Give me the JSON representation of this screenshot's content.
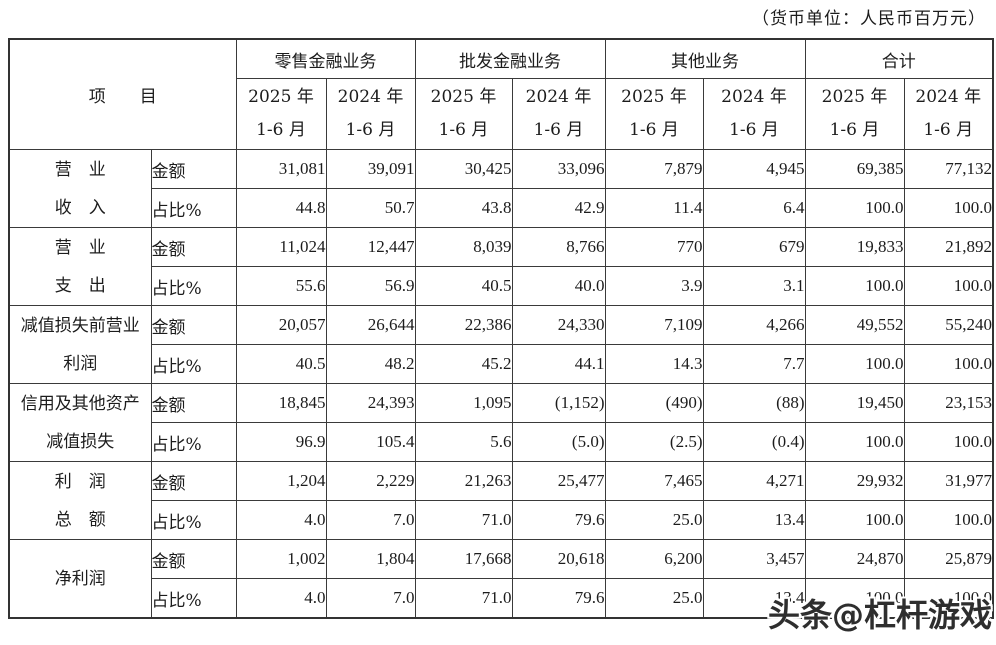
{
  "unit_note": "（货币单位：人民币百万元）",
  "watermark": "头条@杠杆游戏",
  "table": {
    "item_header": "项　　目",
    "groups": [
      {
        "label": "零售金融业务"
      },
      {
        "label": "批发金融业务"
      },
      {
        "label": "其他业务"
      },
      {
        "label": "合计"
      }
    ],
    "period_headers": [
      "2025 年\n1-6 月",
      "2024 年\n1-6 月",
      "2025 年\n1-6 月",
      "2024 年\n1-6 月",
      "2025 年\n1-6 月",
      "2024 年\n1-6 月",
      "2025 年\n1-6 月",
      "2024 年\n1-6 月"
    ],
    "row_labels": {
      "amount": "金额",
      "share": "占比%"
    },
    "rows": [
      {
        "item": "营　业\n收　入",
        "amount": [
          "31,081",
          "39,091",
          "30,425",
          "33,096",
          "7,879",
          "4,945",
          "69,385",
          "77,132"
        ],
        "share": [
          "44.8",
          "50.7",
          "43.8",
          "42.9",
          "11.4",
          "6.4",
          "100.0",
          "100.0"
        ]
      },
      {
        "item": "营　业\n支　出",
        "amount": [
          "11,024",
          "12,447",
          "8,039",
          "8,766",
          "770",
          "679",
          "19,833",
          "21,892"
        ],
        "share": [
          "55.6",
          "56.9",
          "40.5",
          "40.0",
          "3.9",
          "3.1",
          "100.0",
          "100.0"
        ]
      },
      {
        "item": "减值损失前营业\n利润",
        "amount": [
          "20,057",
          "26,644",
          "22,386",
          "24,330",
          "7,109",
          "4,266",
          "49,552",
          "55,240"
        ],
        "share": [
          "40.5",
          "48.2",
          "45.2",
          "44.1",
          "14.3",
          "7.7",
          "100.0",
          "100.0"
        ]
      },
      {
        "item": "信用及其他资产\n减值损失",
        "amount": [
          "18,845",
          "24,393",
          "1,095",
          "(1,152)",
          "(490)",
          "(88)",
          "19,450",
          "23,153"
        ],
        "share": [
          "96.9",
          "105.4",
          "5.6",
          "(5.0)",
          "(2.5)",
          "(0.4)",
          "100.0",
          "100.0"
        ]
      },
      {
        "item": "利　润\n总　额",
        "amount": [
          "1,204",
          "2,229",
          "21,263",
          "25,477",
          "7,465",
          "4,271",
          "29,932",
          "31,977"
        ],
        "share": [
          "4.0",
          "7.0",
          "71.0",
          "79.6",
          "25.0",
          "13.4",
          "100.0",
          "100.0"
        ]
      },
      {
        "item": "净利润",
        "amount": [
          "1,002",
          "1,804",
          "17,668",
          "20,618",
          "6,200",
          "3,457",
          "24,870",
          "25,879"
        ],
        "share": [
          "4.0",
          "7.0",
          "71.0",
          "79.6",
          "25.0",
          "13.4",
          "100.0",
          "100.0"
        ]
      }
    ]
  }
}
